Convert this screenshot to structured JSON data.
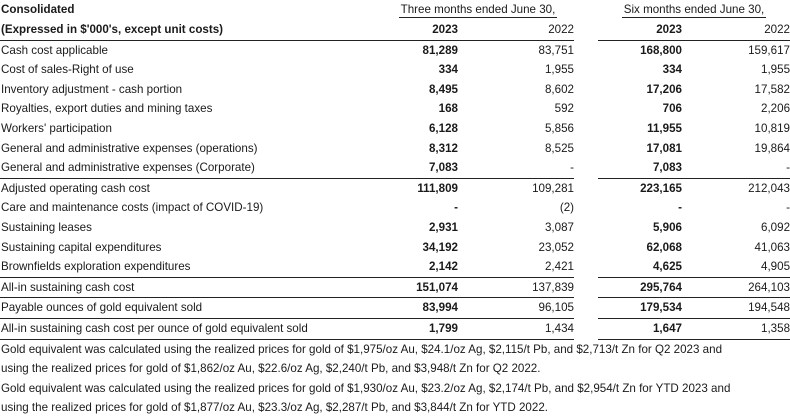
{
  "header": {
    "title": "Consolidated",
    "subtitle": "(Expressed in $'000's, except unit costs)",
    "period_three": "Three months ended June 30,",
    "period_six": "Six months ended June 30,",
    "years": [
      "2023",
      "2022",
      "2023",
      "2022"
    ]
  },
  "rows": [
    {
      "label": "Cash cost applicable",
      "v": [
        "81,289",
        "83,751",
        "168,800",
        "159,617"
      ]
    },
    {
      "label": "Cost of sales-Right of use",
      "v": [
        "334",
        "1,955",
        "334",
        "1,955"
      ]
    },
    {
      "label": "Inventory adjustment - cash portion",
      "v": [
        "8,495",
        "8,602",
        "17,206",
        "17,582"
      ]
    },
    {
      "label": "Royalties, export duties and mining taxes",
      "v": [
        "168",
        "592",
        "706",
        "2,206"
      ]
    },
    {
      "label": "Workers' participation",
      "v": [
        "6,128",
        "5,856",
        "11,955",
        "10,819"
      ]
    },
    {
      "label": "General and administrative expenses (operations)",
      "v": [
        "8,312",
        "8,525",
        "17,081",
        "19,864"
      ]
    },
    {
      "label": "General and administrative expenses (Corporate)",
      "v": [
        "7,083",
        "-",
        "7,083",
        "-"
      ]
    },
    {
      "label": "Adjusted operating cash cost",
      "v": [
        "111,809",
        "109,281",
        "223,165",
        "212,043"
      ]
    },
    {
      "label": "Care and maintenance costs (impact of COVID-19)",
      "v": [
        "-",
        "(2)",
        "-",
        "-"
      ]
    },
    {
      "label": "Sustaining leases",
      "v": [
        "2,931",
        "3,087",
        "5,906",
        "6,092"
      ]
    },
    {
      "label": "Sustaining capital expenditures",
      "v": [
        "34,192",
        "23,052",
        "62,068",
        "41,063"
      ]
    },
    {
      "label": "Brownfields exploration expenditures",
      "v": [
        "2,142",
        "2,421",
        "4,625",
        "4,905"
      ]
    },
    {
      "label": "All-in sustaining cash cost",
      "v": [
        "151,074",
        "137,839",
        "295,764",
        "264,103"
      ]
    },
    {
      "label": "Payable ounces of gold equivalent sold",
      "v": [
        "83,994",
        "96,105",
        "179,534",
        "194,548"
      ]
    },
    {
      "label": "All-in sustaining cash cost per ounce of gold equivalent sold",
      "v": [
        "1,799",
        "1,434",
        "1,647",
        "1,358"
      ]
    }
  ],
  "notes": [
    "Gold equivalent was calculated using the realized prices for gold of $1,975/oz Au, $24.1/oz Ag, $2,115/t Pb, and $2,713/t Zn for Q2 2023 and",
    "using the realized prices for gold of $1,862/oz Au, $22.6/oz Ag, $2,240/t Pb, and $3,948/t Zn for Q2 2022.",
    "Gold equivalent was calculated using the realized prices for gold of $1,930/oz Au, $23.2/oz Ag, $2,174/t Pb, and $2,954/t Zn for YTD 2023 and",
    "using the realized prices for gold of $1,877/oz Au, $23.3/oz Ag, $2,287/t Pb, and $3,844/t Zn for YTD 2022."
  ]
}
